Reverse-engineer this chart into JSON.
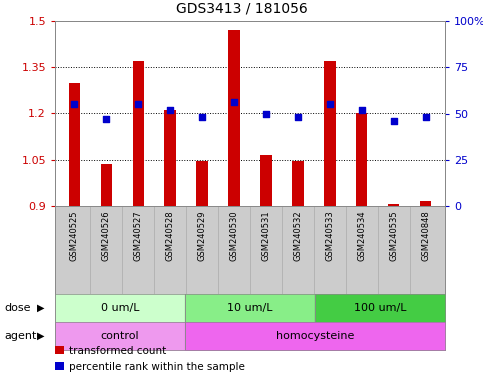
{
  "title": "GDS3413 / 181056",
  "samples": [
    "GSM240525",
    "GSM240526",
    "GSM240527",
    "GSM240528",
    "GSM240529",
    "GSM240530",
    "GSM240531",
    "GSM240532",
    "GSM240533",
    "GSM240534",
    "GSM240535",
    "GSM240848"
  ],
  "bar_values": [
    1.3,
    1.035,
    1.37,
    1.21,
    1.045,
    1.47,
    1.065,
    1.045,
    1.37,
    1.2,
    0.905,
    0.915
  ],
  "percentile_values": [
    55,
    47,
    55,
    52,
    48,
    56,
    50,
    48,
    55,
    52,
    46,
    48
  ],
  "bar_color": "#cc0000",
  "percentile_color": "#0000cc",
  "ylim_left": [
    0.9,
    1.5
  ],
  "ylim_right": [
    0,
    100
  ],
  "yticks_left": [
    0.9,
    1.05,
    1.2,
    1.35,
    1.5
  ],
  "yticks_left_labels": [
    "0.9",
    "1.05",
    "1.2",
    "1.35",
    "1.5"
  ],
  "yticks_right": [
    0,
    25,
    50,
    75,
    100
  ],
  "yticks_right_labels": [
    "0",
    "25",
    "50",
    "75",
    "100%"
  ],
  "dose_groups": [
    {
      "label": "0 um/L",
      "start": 0,
      "end": 4,
      "color": "#ccffcc"
    },
    {
      "label": "10 um/L",
      "start": 4,
      "end": 8,
      "color": "#88ee88"
    },
    {
      "label": "100 um/L",
      "start": 8,
      "end": 12,
      "color": "#44cc44"
    }
  ],
  "agent_groups": [
    {
      "label": "control",
      "start": 0,
      "end": 4,
      "color": "#ee99ee"
    },
    {
      "label": "homocysteine",
      "start": 4,
      "end": 12,
      "color": "#ee66ee"
    }
  ],
  "legend_bar_label": "transformed count",
  "legend_percentile_label": "percentile rank within the sample",
  "bar_width": 0.35,
  "left_color": "#cc0000",
  "right_color": "#0000cc",
  "label_area_color": "#cccccc",
  "plot_bg_color": "#ffffff",
  "fig_bg_color": "#ffffff"
}
